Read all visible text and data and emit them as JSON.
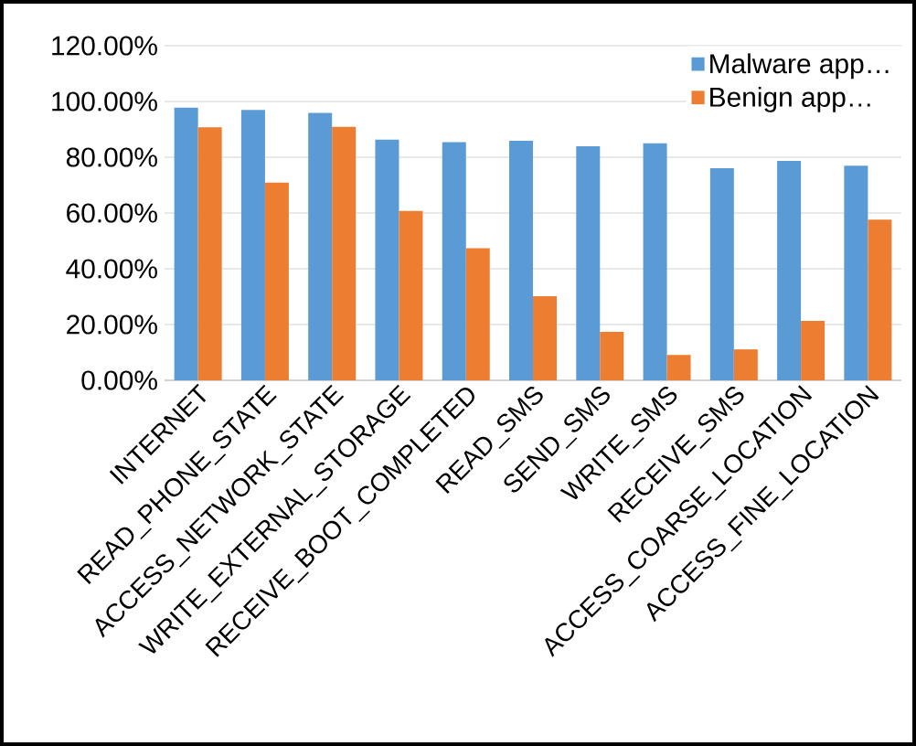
{
  "chart_data": {
    "type": "bar",
    "categories": [
      "INTERNET",
      "READ_PHONE_STATE",
      "ACCESS_NETWORK_STATE",
      "WRITE_EXTERNAL_STORAGE",
      "RECEIVE_BOOT_COMPLETED",
      "READ_SMS",
      "SEND_SMS",
      "WRITE_SMS",
      "RECEIVE_SMS",
      "ACCESS_COARSE_LOCATION",
      "ACCESS_FINE_LOCATION"
    ],
    "series": [
      {
        "name": "Malware app…",
        "color": "#5b9bd5",
        "values": [
          97.8,
          97,
          95.9,
          86.3,
          85.4,
          85.9,
          83.9,
          85,
          76.1,
          78.7,
          77
        ]
      },
      {
        "name": "Benign app…",
        "color": "#ed7d31",
        "values": [
          90.7,
          70.9,
          90.9,
          60.7,
          47.4,
          30.2,
          17.4,
          9.1,
          11.1,
          21.3,
          57.6
        ]
      }
    ],
    "ylim": [
      0,
      120
    ],
    "yticks": [
      {
        "value": 0,
        "label": "0.00%"
      },
      {
        "value": 20,
        "label": "20.00%"
      },
      {
        "value": 40,
        "label": "40.00%"
      },
      {
        "value": 60,
        "label": "60.00%"
      },
      {
        "value": 80,
        "label": "80.00%"
      },
      {
        "value": 100,
        "label": "100.00%"
      },
      {
        "value": 120,
        "label": "120.00%"
      }
    ],
    "grid": "y",
    "legend": "top right"
  }
}
